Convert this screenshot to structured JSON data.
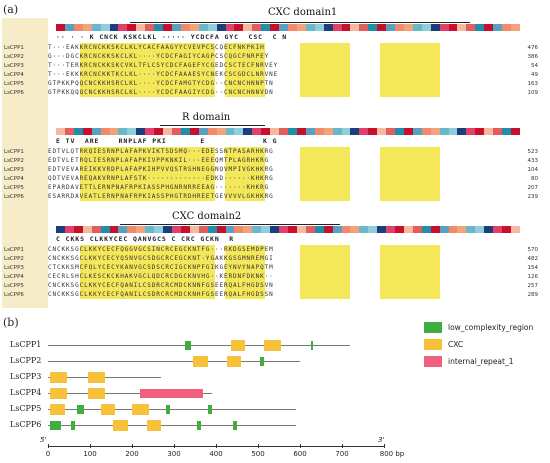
{
  "panel_a_label": "(a)",
  "panel_b_label": "(b)",
  "domains": {
    "cxc1": "CXC domain1",
    "r": "R domain",
    "cxc2": "CXC domain2"
  },
  "names": [
    "LsCPP1",
    "LsCPP2",
    "LsCPP3",
    "LsCPP4",
    "LsCPP5",
    "LsCPP6"
  ],
  "blocks": [
    {
      "consensus": "·· · · K CNCK KSKCLKL ····· YCDCFA GYC  CSC  C N   ",
      "rows": [
        {
          "seq": "T···EAKKRCNCKKSKCLKLYCACFAAGYYCVEVPCSCQECFNKPKIH",
          "num": "476"
        },
        {
          "seq": "G···DGCKRCNCKKSKCLKL····YCDCFAGIYCAGPCSCQGCFNRPEY",
          "num": "386"
        },
        {
          "seq": "T···TERKRCNCKKSKCVKLTFLCSYCDCFAGEFYCGEDCSCTECFNRVEY",
          "num": "54"
        },
        {
          "seq": "T···EKKKRCNCKKTKCLKL····YCDCFAAAESYCNEKCSCGDCLNRVNE",
          "num": "49"
        },
        {
          "seq": "GTPKKPQQCNCKKHSRCLKL····YCDCFAMGTYCDG··CNCNCHNNPTN",
          "num": "163"
        },
        {
          "seq": "GTPKKQQQCNCKKHSRCLKL····YCDCFAAGIYCDG··CNCNCHNNVDN",
          "num": "109"
        }
      ]
    },
    {
      "consensus": "E TV  ARE    RNPLAF PKI       E            K G   ",
      "rows": [
        {
          "seq": "EDTVLQTRKQIESRNPLAFAPKVIKTSDSMQ···EDESSNTPASARHKRG",
          "num": "523"
        },
        {
          "seq": "EDTVLETRQLIESRNPLAFAPKIVPPKNKIL···EEEQMTPLAGRHKRG",
          "num": "433"
        },
        {
          "seq": "EDTVEVAREIKKVRDPLAFAPKIHPVVQSTRSHNEGGNQVMPIVGKHKRG",
          "num": "104"
        },
        {
          "seq": "QDTVEVAREQAKVRNPLAFSTK·············EDKD······KHKRG",
          "num": "80"
        },
        {
          "seq": "EPARDAVETTLERNPNAFRPKIASSPHGNRNRREEAG·······KHKRG",
          "num": "207"
        },
        {
          "seq": "ESARRDAVEATLERNPNAFRPKIASSPHGTRDHREETGEVVVVLGKHKRG",
          "num": "239"
        }
      ]
    },
    {
      "consensus": "C CKKS CLKKYCEC QANVGCS C CRC GCKN  R            ",
      "rows": [
        {
          "seq": "CNCKKSGCLKKYCECFQGGVGCSINCRCEGCKNTFG···RKDGSEMDPEM",
          "num": "570"
        },
        {
          "seq": "CNCKKSGCLKKYCECYQSNVGCSDGCRCEGCKNT·YGAKKGSGMNREMGI",
          "num": "482"
        },
        {
          "seq": "CTCKKSMCFQLYCECYKANVGCSDSCRCIGCKNPFGIKGEYNVYNAPQTM",
          "num": "154"
        },
        {
          "seq": "CECRLSHCLKESCKCKHAKVGCLQDCRCDGCKNVHG··KERDNFDKNK··",
          "num": "126"
        },
        {
          "seq": "CNCKKSGCLKKYCECFQANILCSDRCRCMDCKNNFGSEERQALFHGDSVN",
          "num": "257"
        },
        {
          "seq": "CNCKKSGCLKKYCECFQANILCSDRCRCMDCKNHFGSEERQALFHGDSSN",
          "num": "289"
        }
      ]
    }
  ],
  "legend": [
    {
      "label": "low_complexity_region",
      "color": "#3fae3f"
    },
    {
      "label": "CXC",
      "color": "#f7c23a"
    },
    {
      "label": "internal_repeat_1",
      "color": "#f0607e"
    }
  ],
  "proteins": [
    {
      "name": "LsCPP1",
      "length": 720,
      "features": [
        {
          "t": "low",
          "s": 325,
          "e": 340
        },
        {
          "t": "cxc",
          "s": 435,
          "e": 470
        },
        {
          "t": "cxc",
          "s": 515,
          "e": 555
        },
        {
          "t": "low",
          "s": 625,
          "e": 632
        }
      ]
    },
    {
      "name": "LsCPP2",
      "length": 600,
      "features": [
        {
          "t": "cxc",
          "s": 345,
          "e": 380
        },
        {
          "t": "cxc",
          "s": 425,
          "e": 460
        },
        {
          "t": "low",
          "s": 505,
          "e": 515
        }
      ]
    },
    {
      "name": "LsCPP3",
      "length": 270,
      "features": [
        {
          "t": "cxc",
          "s": 5,
          "e": 45
        },
        {
          "t": "cxc",
          "s": 95,
          "e": 135
        }
      ]
    },
    {
      "name": "LsCPP4",
      "length": 390,
      "features": [
        {
          "t": "cxc",
          "s": 5,
          "e": 45
        },
        {
          "t": "cxc",
          "s": 95,
          "e": 135
        },
        {
          "t": "rep",
          "s": 220,
          "e": 370
        }
      ]
    },
    {
      "name": "LsCPP5",
      "length": 590,
      "features": [
        {
          "t": "cxc",
          "s": 5,
          "e": 40
        },
        {
          "t": "low",
          "s": 68,
          "e": 85
        },
        {
          "t": "cxc",
          "s": 125,
          "e": 160
        },
        {
          "t": "cxc",
          "s": 200,
          "e": 240
        },
        {
          "t": "low",
          "s": 280,
          "e": 290
        },
        {
          "t": "low",
          "s": 380,
          "e": 390
        }
      ]
    },
    {
      "name": "LsCPP6",
      "length": 590,
      "features": [
        {
          "t": "low",
          "s": 5,
          "e": 30
        },
        {
          "t": "low",
          "s": 55,
          "e": 65
        },
        {
          "t": "cxc",
          "s": 155,
          "e": 190
        },
        {
          "t": "cxc",
          "s": 235,
          "e": 270
        },
        {
          "t": "low",
          "s": 355,
          "e": 365
        },
        {
          "t": "low",
          "s": 440,
          "e": 450
        }
      ]
    }
  ],
  "axis": {
    "ticks": [
      "0",
      "100",
      "200",
      "300",
      "400",
      "500",
      "600",
      "700",
      "800 bp"
    ],
    "left_label": "5'",
    "right_label": "3'"
  }
}
